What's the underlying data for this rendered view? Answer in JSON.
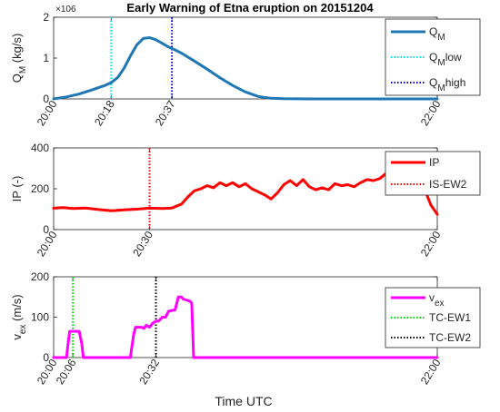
{
  "title": "Early Warning of Etna eruption on 20151204",
  "xlabel_common": "Time UTC",
  "chart_data": [
    {
      "type": "line",
      "ylabel": "Q_M (kg/s)",
      "y_exponent": "×10^6",
      "ylim": [
        0,
        2
      ],
      "yticks": [
        0,
        1,
        2
      ],
      "xlim_minutes": [
        0,
        120
      ],
      "xticks": [
        {
          "t": 0,
          "label": "20:00"
        },
        {
          "t": 18,
          "label": "20:18"
        },
        {
          "t": 37,
          "label": "20:37"
        },
        {
          "t": 120,
          "label": "22:00"
        }
      ],
      "series": [
        {
          "name": "Q_M",
          "color": "#1f77b4",
          "style": "solid",
          "x": [
            0,
            4,
            8,
            12,
            16,
            18,
            20,
            22,
            24,
            26,
            28,
            30,
            32,
            34,
            36,
            38,
            40,
            44,
            48,
            52,
            56,
            60,
            64,
            68,
            72,
            80,
            90,
            100,
            110,
            120
          ],
          "y": [
            0,
            0.05,
            0.12,
            0.22,
            0.33,
            0.4,
            0.52,
            0.75,
            1.05,
            1.32,
            1.48,
            1.5,
            1.45,
            1.36,
            1.27,
            1.2,
            1.12,
            0.93,
            0.73,
            0.52,
            0.33,
            0.17,
            0.06,
            0.015,
            0.005,
            0,
            0,
            0,
            0,
            0
          ]
        }
      ],
      "vlines": [
        {
          "name": "Q_M low",
          "x": 18,
          "color": "#00e5ee",
          "style": "dotted"
        },
        {
          "name": "Q_M high",
          "x": 37,
          "color": "#0000cc",
          "style": "dotted"
        }
      ],
      "legend": [
        "Q_M",
        "Q_M low",
        "Q_M high"
      ],
      "legend_labels": [
        {
          "main": "Q",
          "sub": "M",
          "suffix": ""
        },
        {
          "main": "Q",
          "sub": "M",
          "suffix": "low"
        },
        {
          "main": "Q",
          "sub": "M",
          "suffix": "high"
        }
      ],
      "legend_position": "top-right"
    },
    {
      "type": "line",
      "ylabel": "IP (-)",
      "ylim": [
        0,
        400
      ],
      "yticks": [
        0,
        200,
        400
      ],
      "xlim_minutes": [
        0,
        120
      ],
      "xticks": [
        {
          "t": 0,
          "label": "20:00"
        },
        {
          "t": 30,
          "label": "20:30"
        },
        {
          "t": 120,
          "label": "22:00"
        }
      ],
      "series": [
        {
          "name": "IP",
          "color": "#ff0000",
          "style": "solid",
          "x": [
            0,
            3,
            6,
            10,
            14,
            18,
            22,
            26,
            30,
            34,
            37,
            40,
            42,
            44,
            46,
            48,
            50,
            52,
            54,
            56,
            58,
            60,
            62,
            64,
            66,
            68,
            70,
            72,
            74,
            76,
            78,
            80,
            82,
            84,
            86,
            88,
            90,
            92,
            94,
            96,
            98,
            100,
            102,
            104,
            106,
            108,
            110,
            112,
            114,
            116,
            118,
            120
          ],
          "y": [
            105,
            108,
            103,
            106,
            98,
            92,
            97,
            100,
            105,
            103,
            106,
            125,
            160,
            190,
            200,
            215,
            205,
            230,
            215,
            230,
            210,
            225,
            200,
            185,
            170,
            150,
            180,
            220,
            240,
            215,
            245,
            210,
            195,
            205,
            195,
            225,
            215,
            220,
            210,
            230,
            245,
            240,
            250,
            275,
            250,
            290,
            255,
            280,
            265,
            200,
            120,
            75
          ]
        }
      ],
      "vlines": [
        {
          "name": "IS-EW2",
          "x": 30,
          "color": "#ff0000",
          "style": "dotted"
        }
      ],
      "legend": [
        "IP",
        "IS-EW2"
      ],
      "legend_labels": [
        {
          "main": "IP",
          "sub": "",
          "suffix": ""
        },
        {
          "main": "IS-EW2",
          "sub": "",
          "suffix": ""
        }
      ],
      "legend_position": "top-right"
    },
    {
      "type": "line",
      "ylabel": "v_ex (m/s)",
      "ylim": [
        0,
        200
      ],
      "yticks": [
        0,
        100,
        200
      ],
      "xlim_minutes": [
        0,
        120
      ],
      "xticks": [
        {
          "t": 0,
          "label": "20:00"
        },
        {
          "t": 6,
          "label": "20:06"
        },
        {
          "t": 32,
          "label": "20:32"
        },
        {
          "t": 120,
          "label": "22:00"
        }
      ],
      "series": [
        {
          "name": "v_ex",
          "color": "#ff00ff",
          "style": "solid",
          "x": [
            0,
            4,
            4.6,
            5,
            8,
            8.8,
            9.3,
            24,
            25,
            25.6,
            27.5,
            28.2,
            29,
            30,
            31,
            32,
            32.8,
            33.4,
            34,
            35,
            36,
            38,
            39,
            40,
            40.5,
            42.5,
            43.2,
            43.8,
            120
          ],
          "y": [
            0,
            0,
            40,
            65,
            65,
            35,
            0,
            0,
            55,
            75,
            75,
            72,
            80,
            75,
            85,
            90,
            90,
            95,
            100,
            100,
            115,
            118,
            150,
            150,
            145,
            140,
            135,
            0,
            0
          ]
        }
      ],
      "vlines": [
        {
          "name": "TC-EW1",
          "x": 6,
          "color": "#00dd00",
          "style": "dotted"
        },
        {
          "name": "TC-EW2",
          "x": 32,
          "color": "#000000",
          "style": "dotted"
        }
      ],
      "legend": [
        "v_ex",
        "TC-EW1",
        "TC-EW2"
      ],
      "legend_labels": [
        {
          "main": "v",
          "sub": "ex",
          "suffix": ""
        },
        {
          "main": "TC-EW1",
          "sub": "",
          "suffix": ""
        },
        {
          "main": "TC-EW2",
          "sub": "",
          "suffix": ""
        }
      ],
      "legend_position": "middle-right"
    }
  ]
}
